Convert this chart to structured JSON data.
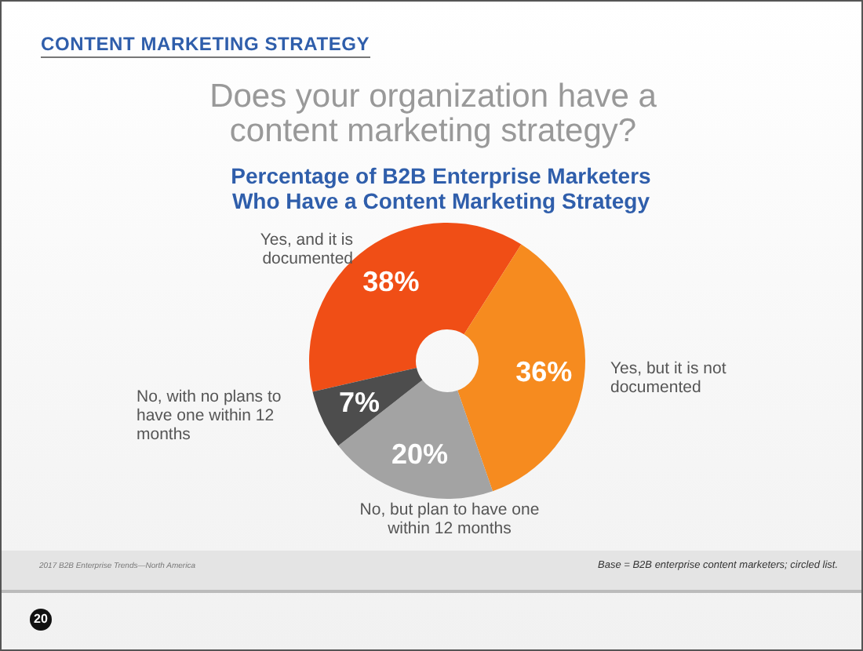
{
  "chart_data": {
    "type": "donut",
    "title": "Does your organization have a content marketing strategy?",
    "subtitle": "Percentage of B2B Enterprise Marketers Who Have a Content Marketing Strategy",
    "categories": [
      "Yes, and it is documented",
      "Yes, but it is not documented",
      "No, but plan to have one within 12 months",
      "No, with no plans to have one within 12 months"
    ],
    "values": [
      38,
      36,
      20,
      7
    ],
    "colors": [
      "#f04e16",
      "#f68b1f",
      "#a3a3a3",
      "#4d4d4d"
    ],
    "value_labels": [
      "38%",
      "36%",
      "20%",
      "7%"
    ],
    "annotations": [
      "CONTENT MARKETING STRATEGY",
      "2017 B2B Enterprise Trends—North America",
      "Base = B2B enterprise content marketers; circled list.",
      "20"
    ]
  }
}
